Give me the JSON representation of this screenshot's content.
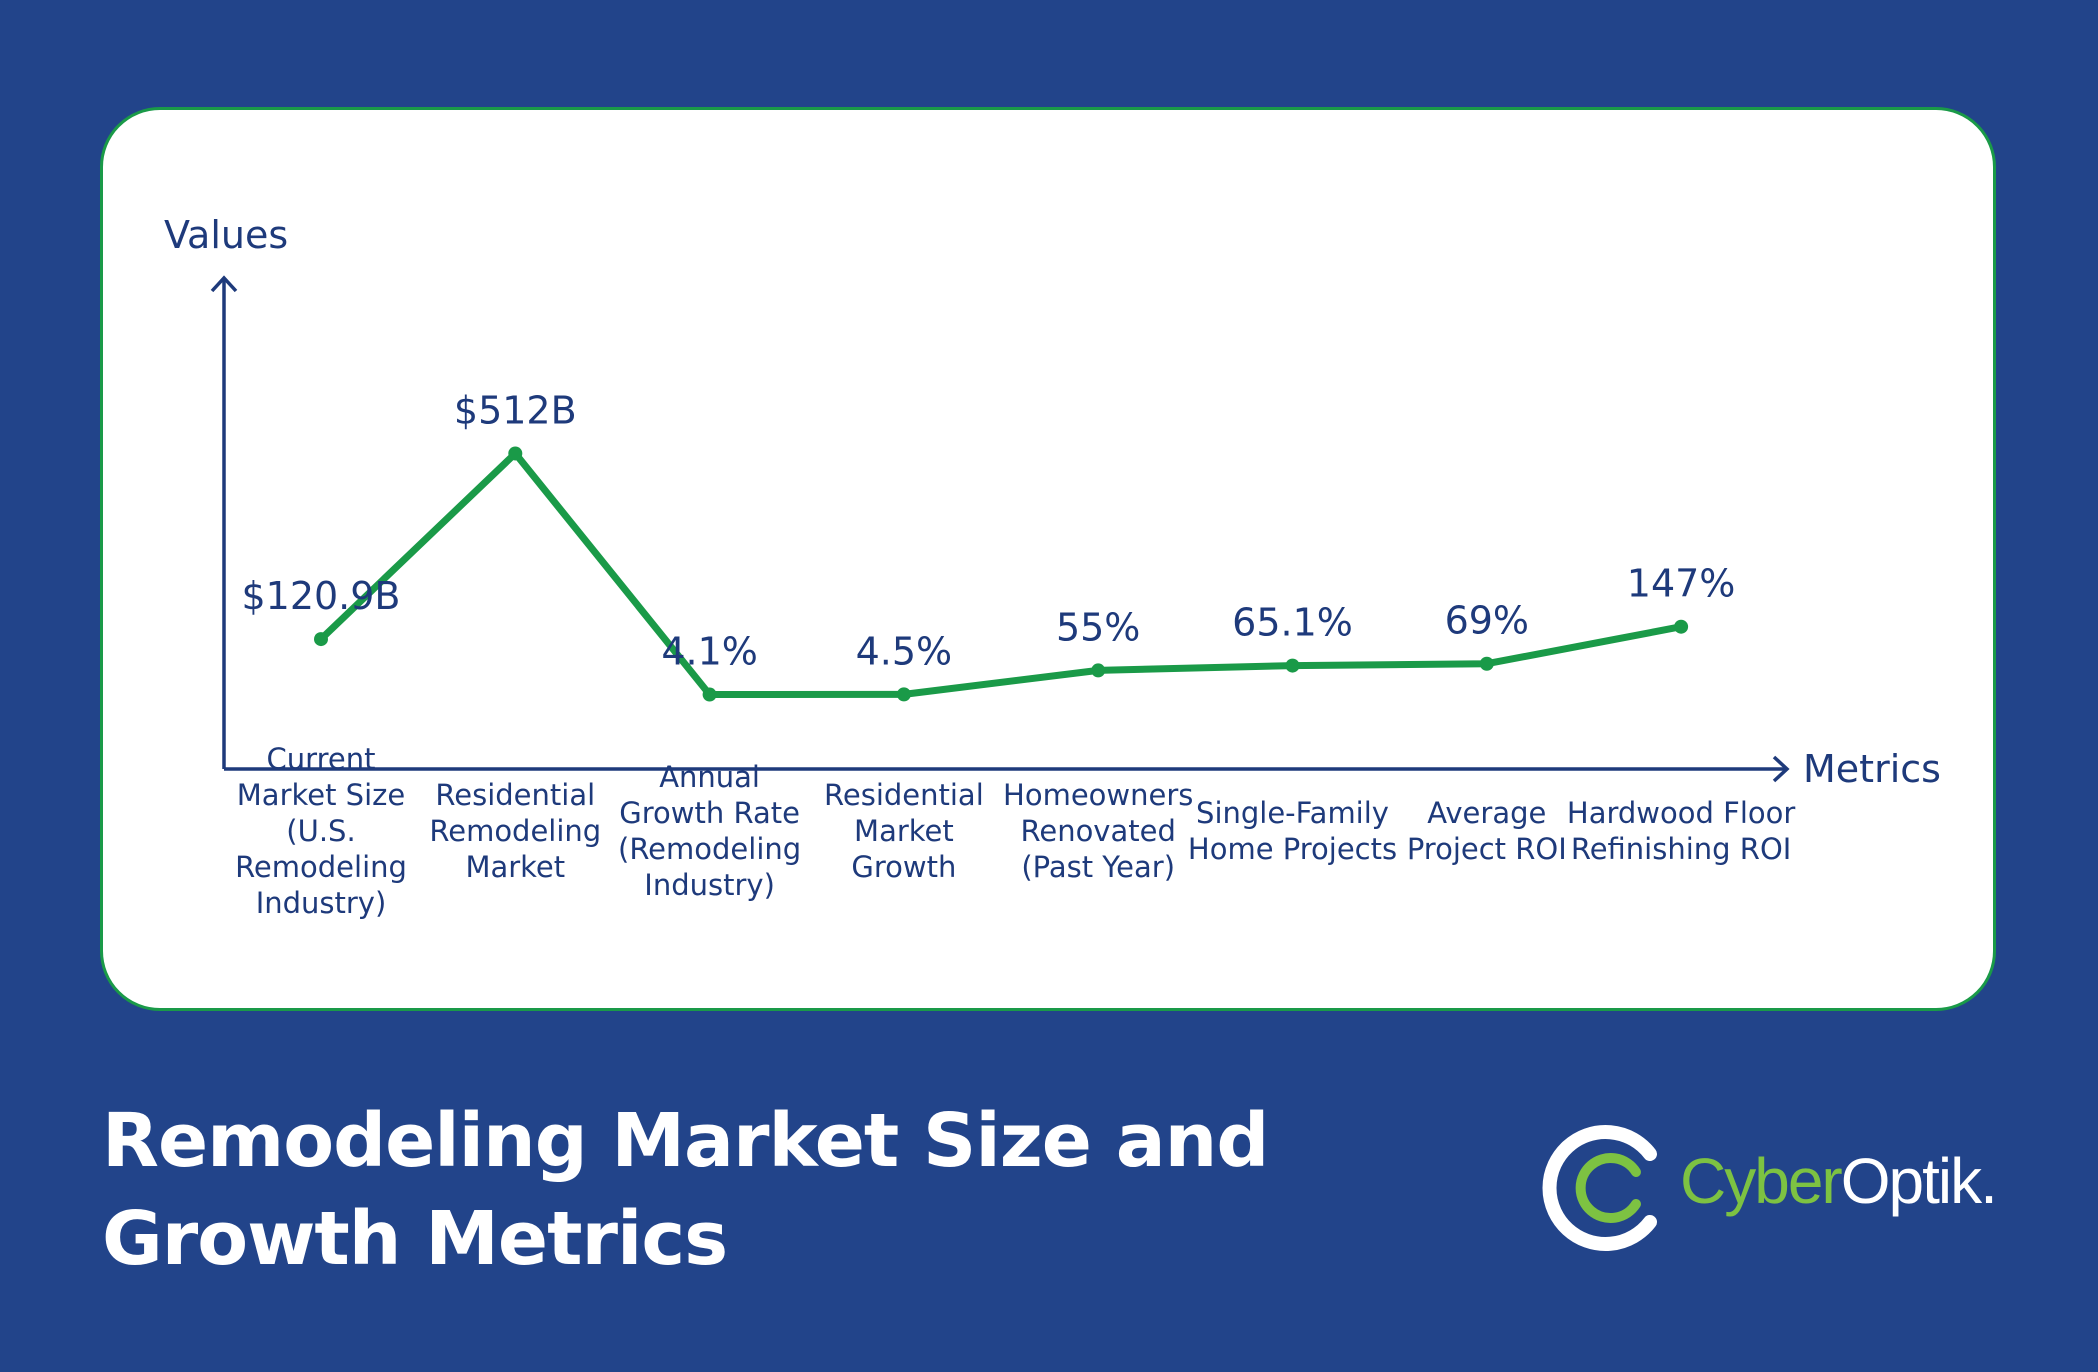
{
  "title": "Remodeling Market Size and Growth Metrics",
  "brand": {
    "part1": "Cyber",
    "part2": "Optik.",
    "logo_icon": "cyberoptik-ring-logo"
  },
  "colors": {
    "background": "#22448a",
    "card": "#ffffff",
    "line": "#1a9a48",
    "axis": "#1e3a7b",
    "text": "#1e3a7b",
    "logo_green": "#7dc242"
  },
  "chart_data": {
    "type": "line",
    "xlabel": "Metrics",
    "ylabel": "Values",
    "grid": false,
    "categories": [
      [
        "Current",
        "Market Size",
        "(U.S.",
        "Remodeling",
        "Industry)"
      ],
      [
        "Residential",
        "Remodeling",
        "Market"
      ],
      [
        "Annual",
        "Growth Rate",
        "(Remodeling",
        "Industry)"
      ],
      [
        "Residential",
        "Market",
        "Growth"
      ],
      [
        "Homeowners",
        "Renovated",
        "(Past Year)"
      ],
      [
        "Single-Family",
        "Home Projects"
      ],
      [
        "Average",
        "Project ROI"
      ],
      [
        "Hardwood Floor",
        "Refinishing ROI"
      ]
    ],
    "series": [
      {
        "values": [
          120.9,
          512,
          4.1,
          4.5,
          55,
          65.1,
          69,
          147
        ],
        "labels": [
          "$120.9B",
          "$512B",
          "4.1%",
          "4.5%",
          "55%",
          "65.1%",
          "69%",
          "147%"
        ]
      }
    ],
    "ylim": [
      -70,
      650
    ]
  }
}
